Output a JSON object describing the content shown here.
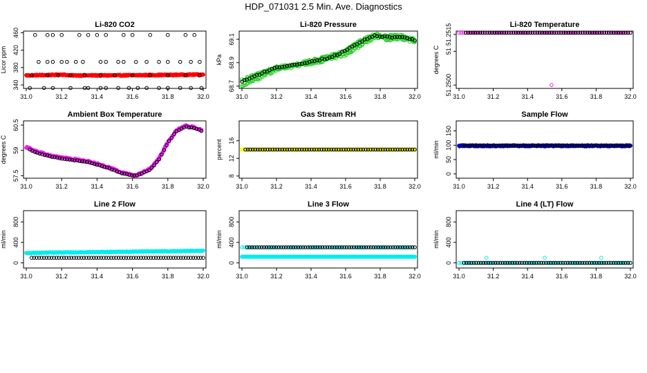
{
  "page": {
    "title": "HDP_071031  2.5 Min. Ave. Diagnostics"
  },
  "colors": {
    "black": "#000000",
    "red": "#ff0000",
    "green": "#22cc22",
    "magenta": "#ee22ee",
    "yellow": "#ffff00",
    "blue": "#0000cc",
    "cyan": "#00eeee"
  },
  "chart_data": [
    {
      "type": "scatter",
      "title": "Li-820 CO2",
      "ylabel": "Licor ppm",
      "xlabel": "",
      "xlim": [
        31.0,
        32.0
      ],
      "ylim": [
        332,
        464
      ],
      "yticks": [
        340,
        380,
        420,
        460
      ],
      "xticks": [
        "31.0",
        "31.2",
        "31.4",
        "31.6",
        "31.8",
        "32.0"
      ],
      "series": [
        {
          "name": "co2_avg",
          "color": "#ff0000",
          "marker": "filled",
          "gen": "noisy",
          "x0": 31.0,
          "x1": 32.0,
          "n": 320,
          "anchors": [
            [
              31.0,
              362
            ],
            [
              31.15,
              363
            ],
            [
              31.2,
              364
            ],
            [
              31.25,
              362
            ],
            [
              31.5,
              362
            ],
            [
              31.8,
              363
            ],
            [
              32.0,
              364
            ]
          ],
          "noise": 1.2
        },
        {
          "name": "co2_black_points",
          "color": "#000000",
          "marker": "open",
          "points": [
            [
              31.02,
              333
            ],
            [
              31.07,
              393
            ],
            [
              31.1,
              333
            ],
            [
              31.15,
              333
            ],
            [
              31.25,
              333
            ],
            [
              31.33,
              333
            ],
            [
              31.35,
              333
            ],
            [
              31.42,
              333
            ],
            [
              31.45,
              333
            ],
            [
              31.52,
              333
            ],
            [
              31.58,
              333
            ],
            [
              31.63,
              333
            ],
            [
              31.68,
              333
            ],
            [
              31.75,
              333
            ],
            [
              31.8,
              333
            ],
            [
              31.87,
              333
            ],
            [
              31.93,
              333
            ],
            [
              31.99,
              333
            ],
            [
              31.05,
              455
            ],
            [
              31.12,
              455
            ],
            [
              31.15,
              455
            ],
            [
              31.2,
              455
            ],
            [
              31.3,
              455
            ],
            [
              31.35,
              455
            ],
            [
              31.4,
              455
            ],
            [
              31.45,
              455
            ],
            [
              31.55,
              455
            ],
            [
              31.6,
              455
            ],
            [
              31.7,
              455
            ],
            [
              31.8,
              455
            ],
            [
              31.9,
              455
            ],
            [
              31.95,
              455
            ],
            [
              31.12,
              393
            ],
            [
              31.15,
              393
            ],
            [
              31.2,
              393
            ],
            [
              31.23,
              393
            ],
            [
              31.28,
              393
            ],
            [
              31.32,
              393
            ],
            [
              31.42,
              393
            ],
            [
              31.45,
              393
            ],
            [
              31.52,
              393
            ],
            [
              31.55,
              393
            ],
            [
              31.62,
              393
            ],
            [
              31.68,
              393
            ],
            [
              31.75,
              393
            ],
            [
              31.8,
              393
            ],
            [
              31.87,
              393
            ],
            [
              31.93,
              393
            ],
            [
              31.98,
              393
            ],
            [
              31.03,
              362
            ],
            [
              31.12,
              362
            ],
            [
              31.18,
              362
            ],
            [
              31.25,
              362
            ],
            [
              31.33,
              362
            ],
            [
              31.42,
              362
            ],
            [
              31.5,
              362
            ],
            [
              31.6,
              362
            ],
            [
              31.7,
              362
            ],
            [
              31.8,
              362
            ],
            [
              31.9,
              362
            ],
            [
              31.98,
              362
            ]
          ]
        }
      ]
    },
    {
      "type": "scatter",
      "title": "Li-820 Pressure",
      "ylabel": "kPa",
      "xlabel": "",
      "xlim": [
        31.0,
        32.0
      ],
      "ylim": [
        68.68,
        69.17
      ],
      "yticks": [
        68.7,
        68.9,
        69.1
      ],
      "xticks": [
        "31.0",
        "31.2",
        "31.4",
        "31.6",
        "31.8",
        "32.0"
      ],
      "series": [
        {
          "name": "pressure_green_low",
          "color": "#22cc22",
          "marker": "open",
          "gen": "noisy",
          "x0": 31.0,
          "x1": 32.0,
          "n": 170,
          "anchors": [
            [
              31.0,
              68.7
            ],
            [
              31.1,
              68.77
            ],
            [
              31.2,
              68.84
            ],
            [
              31.3,
              68.87
            ],
            [
              31.4,
              68.89
            ],
            [
              31.5,
              68.93
            ],
            [
              31.6,
              68.97
            ],
            [
              31.7,
              69.06
            ],
            [
              31.77,
              69.12
            ],
            [
              31.85,
              69.1
            ],
            [
              31.92,
              69.11
            ],
            [
              32.0,
              69.08
            ]
          ],
          "noise": 0.012
        },
        {
          "name": "pressure_green_high",
          "color": "#22cc22",
          "marker": "open",
          "gen": "noisy",
          "x0": 31.0,
          "x1": 32.0,
          "n": 170,
          "anchors": [
            [
              31.0,
              68.75
            ],
            [
              31.1,
              68.81
            ],
            [
              31.2,
              68.86
            ],
            [
              31.3,
              68.88
            ],
            [
              31.4,
              68.92
            ],
            [
              31.5,
              68.95
            ],
            [
              31.6,
              69.01
            ],
            [
              31.7,
              69.1
            ],
            [
              31.77,
              69.14
            ],
            [
              31.85,
              69.13
            ],
            [
              31.92,
              69.13
            ],
            [
              32.0,
              69.1
            ]
          ],
          "noise": 0.01
        },
        {
          "name": "pressure_black",
          "color": "#000000",
          "marker": "open",
          "gen": "noisy",
          "x0": 31.0,
          "x1": 32.0,
          "n": 70,
          "anchors": [
            [
              31.0,
              68.74
            ],
            [
              31.1,
              68.8
            ],
            [
              31.2,
              68.86
            ],
            [
              31.3,
              68.88
            ],
            [
              31.4,
              68.91
            ],
            [
              31.5,
              68.94
            ],
            [
              31.6,
              69.0
            ],
            [
              31.7,
              69.09
            ],
            [
              31.77,
              69.13
            ],
            [
              31.85,
              69.12
            ],
            [
              31.92,
              69.12
            ],
            [
              32.0,
              69.09
            ]
          ],
          "noise": 0.006
        }
      ]
    },
    {
      "type": "scatter",
      "title": "Li-820 Temperature",
      "ylabel": "degrees C",
      "xlabel": "",
      "xlim": [
        31.0,
        32.0
      ],
      "ylim": [
        51.2499,
        51.2516
      ],
      "yticks": [
        51.25,
        51.251,
        51.2515
      ],
      "ytick_labels": [
        "51.2500",
        "51",
        "51.2515"
      ],
      "xticks": [
        "31.0",
        "31.2",
        "31.4",
        "31.6",
        "31.8",
        "32.0"
      ],
      "series": [
        {
          "name": "temp_magenta",
          "color": "#ee22ee",
          "marker": "open",
          "gen": "line",
          "x0": 31.0,
          "x1": 32.0,
          "n": 80,
          "y": 51.25155
        },
        {
          "name": "temp_black",
          "color": "#000000",
          "marker": "open",
          "gen": "line",
          "x0": 31.04,
          "x1": 32.0,
          "n": 70,
          "y": 51.25155
        },
        {
          "name": "temp_outlier",
          "color": "#ee22ee",
          "marker": "open",
          "points": [
            [
              31.54,
              51.25
            ]
          ]
        }
      ]
    },
    {
      "type": "scatter",
      "title": "Ambient Box Temperature",
      "ylabel": "degrees C",
      "xlabel": "",
      "xlim": [
        31.0,
        32.0
      ],
      "ylim": [
        57.35,
        60.75
      ],
      "yticks": [
        57.5,
        59.0,
        60.5
      ],
      "xticks": [
        "31.0",
        "31.2",
        "31.4",
        "31.6",
        "31.8",
        "32.0"
      ],
      "series": [
        {
          "name": "box_magenta",
          "color": "#ee22ee",
          "marker": "filled",
          "gen": "noisy",
          "x0": 31.0,
          "x1": 31.99,
          "n": 260,
          "anchors": [
            [
              31.0,
              59.2
            ],
            [
              31.05,
              58.95
            ],
            [
              31.15,
              58.65
            ],
            [
              31.25,
              58.5
            ],
            [
              31.35,
              58.35
            ],
            [
              31.45,
              58.05
            ],
            [
              31.55,
              57.65
            ],
            [
              31.62,
              57.5
            ],
            [
              31.7,
              57.9
            ],
            [
              31.75,
              58.5
            ],
            [
              31.8,
              59.5
            ],
            [
              31.85,
              60.2
            ],
            [
              31.9,
              60.45
            ],
            [
              31.96,
              60.35
            ],
            [
              31.99,
              60.2
            ]
          ],
          "noise": 0.05
        },
        {
          "name": "box_black",
          "color": "#000000",
          "marker": "open",
          "gen": "noisy",
          "x0": 31.02,
          "x1": 31.99,
          "n": 70,
          "anchors": [
            [
              31.0,
              59.15
            ],
            [
              31.05,
              58.9
            ],
            [
              31.15,
              58.6
            ],
            [
              31.25,
              58.45
            ],
            [
              31.35,
              58.3
            ],
            [
              31.45,
              58.0
            ],
            [
              31.55,
              57.6
            ],
            [
              31.62,
              57.5
            ],
            [
              31.7,
              57.85
            ],
            [
              31.75,
              58.45
            ],
            [
              31.8,
              59.45
            ],
            [
              31.85,
              60.15
            ],
            [
              31.9,
              60.4
            ],
            [
              31.96,
              60.3
            ],
            [
              31.99,
              60.15
            ]
          ],
          "noise": 0.02
        }
      ]
    },
    {
      "type": "scatter",
      "title": "Gas Stream RH",
      "ylabel": "percent",
      "xlabel": "",
      "xlim": [
        31.0,
        32.0
      ],
      "ylim": [
        7.5,
        20.5
      ],
      "yticks": [
        8,
        12,
        16
      ],
      "xticks": [
        "31.0",
        "31.2",
        "31.4",
        "31.6",
        "31.8",
        "32.0"
      ],
      "series": [
        {
          "name": "rh_yellow",
          "color": "#ffff00",
          "marker": "filled",
          "gen": "line",
          "x0": 31.0,
          "x1": 32.0,
          "n": 200,
          "y": 14.0
        },
        {
          "name": "rh_black",
          "color": "#000000",
          "marker": "open",
          "gen": "line",
          "x0": 31.02,
          "x1": 32.0,
          "n": 70,
          "y": 14.0
        }
      ]
    },
    {
      "type": "scatter",
      "title": "Sample Flow",
      "ylabel": "ml/min",
      "xlabel": "",
      "xlim": [
        31.0,
        32.0
      ],
      "ylim": [
        -15,
        185
      ],
      "yticks": [
        0,
        50,
        100,
        150
      ],
      "xticks": [
        "31.0",
        "31.2",
        "31.4",
        "31.6",
        "31.8",
        "32.0"
      ],
      "series": [
        {
          "name": "sample_blue",
          "color": "#0000cc",
          "marker": "filled",
          "gen": "noisy",
          "x0": 31.0,
          "x1": 32.0,
          "n": 320,
          "anchors": [
            [
              31.0,
              98
            ],
            [
              32.0,
              98
            ]
          ],
          "noise": 2.0
        },
        {
          "name": "sample_black",
          "color": "#000000",
          "marker": "open",
          "gen": "line",
          "x0": 31.02,
          "x1": 32.0,
          "n": 70,
          "y": 99
        }
      ]
    },
    {
      "type": "scatter",
      "title": "Line 2 Flow",
      "ylabel": "ml/min",
      "xlabel": "",
      "xlim": [
        31.0,
        32.0
      ],
      "ylim": [
        -100,
        1020
      ],
      "yticks": [
        0,
        400,
        800
      ],
      "xticks": [
        "31.0",
        "31.2",
        "31.4",
        "31.6",
        "31.8",
        "32.0"
      ],
      "series": [
        {
          "name": "line2_cyan",
          "color": "#00eeee",
          "marker": "filled",
          "gen": "noisy",
          "x0": 31.0,
          "x1": 32.0,
          "n": 320,
          "anchors": [
            [
              31.0,
              195
            ],
            [
              31.5,
              215
            ],
            [
              32.0,
              235
            ]
          ],
          "noise": 6
        },
        {
          "name": "line2_black",
          "color": "#000000",
          "marker": "open",
          "gen": "line",
          "x0": 31.03,
          "x1": 32.0,
          "n": 70,
          "y": 100
        }
      ]
    },
    {
      "type": "scatter",
      "title": "Line 3 Flow",
      "ylabel": "ml/min",
      "xlabel": "",
      "xlim": [
        31.0,
        32.0
      ],
      "ylim": [
        -100,
        1020
      ],
      "yticks": [
        0,
        400,
        800
      ],
      "xticks": [
        "31.0",
        "31.2",
        "31.4",
        "31.6",
        "31.8",
        "32.0"
      ],
      "series": [
        {
          "name": "line3_cyan_low",
          "color": "#00eeee",
          "marker": "filled",
          "gen": "line",
          "x0": 31.0,
          "x1": 32.0,
          "n": 320,
          "y": 120
        },
        {
          "name": "line3_cyan_high",
          "color": "#00eeee",
          "marker": "open",
          "gen": "line",
          "x0": 31.0,
          "x1": 32.0,
          "n": 80,
          "y": 305
        },
        {
          "name": "line3_black",
          "color": "#000000",
          "marker": "open",
          "gen": "line",
          "x0": 31.03,
          "x1": 32.0,
          "n": 70,
          "y": 305
        }
      ]
    },
    {
      "type": "scatter",
      "title": "Line 4 (LT) Flow",
      "ylabel": "ml/min",
      "xlabel": "",
      "xlim": [
        31.0,
        32.0
      ],
      "ylim": [
        -100,
        1020
      ],
      "yticks": [
        0,
        400,
        800
      ],
      "xticks": [
        "31.0",
        "31.2",
        "31.4",
        "31.6",
        "31.8",
        "32.0"
      ],
      "series": [
        {
          "name": "line4_cyan",
          "color": "#00eeee",
          "marker": "open",
          "gen": "line",
          "x0": 31.0,
          "x1": 32.0,
          "n": 80,
          "y": 0
        },
        {
          "name": "line4_black",
          "color": "#000000",
          "marker": "open",
          "gen": "line",
          "x0": 31.03,
          "x1": 32.0,
          "n": 70,
          "y": 0
        },
        {
          "name": "line4_spikes",
          "color": "#00eeee",
          "marker": "open",
          "points": [
            [
              31.16,
              100
            ],
            [
              31.5,
              100
            ],
            [
              31.83,
              100
            ]
          ]
        }
      ]
    }
  ]
}
